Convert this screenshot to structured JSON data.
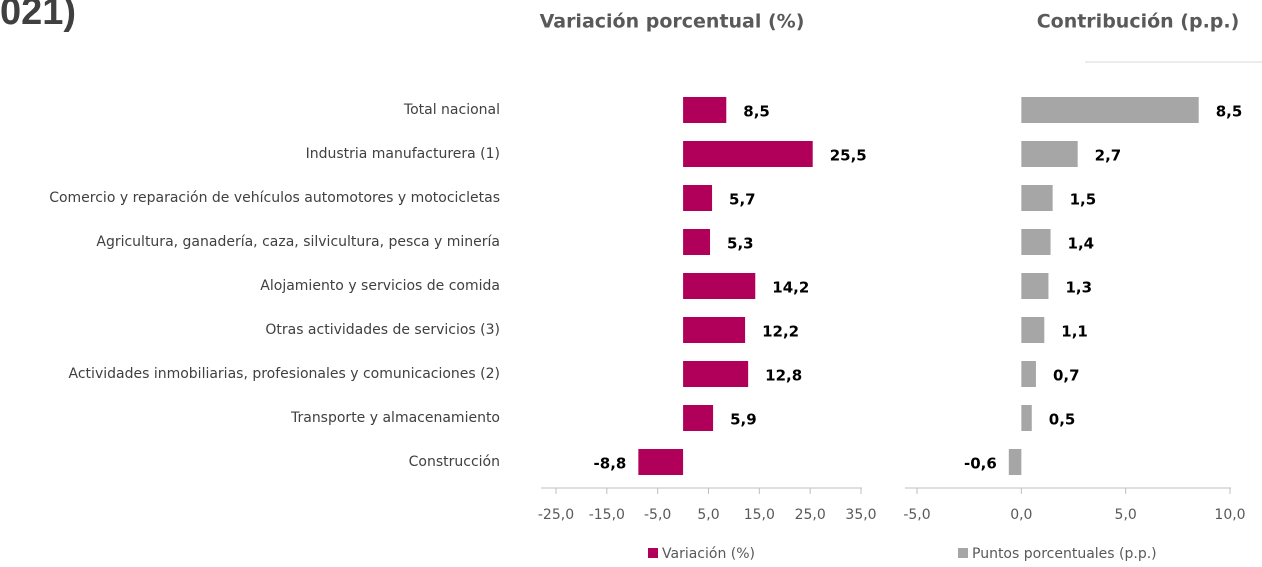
{
  "title_fragment": "021)",
  "chart_data": [
    {
      "type": "barh",
      "title": "Variación porcentual (%)",
      "categories": [
        "Total nacional",
        "Industria manufacturera  (1)",
        "Comercio y reparación de vehículos automotores y motocicletas",
        "Agricultura, ganadería, caza, silvicultura, pesca y minería",
        "Alojamiento y servicios de comida",
        "Otras actividades de servicios (3)",
        "Actividades inmobiliarias, profesionales y comunicaciones (2)",
        "Transporte y almacenamiento",
        "Construcción"
      ],
      "series": [
        {
          "name": "Variación (%)",
          "color": "#b0005a",
          "values": [
            8.5,
            25.5,
            5.7,
            5.3,
            14.2,
            12.2,
            12.8,
            5.9,
            -8.8
          ],
          "value_labels": [
            "8,5",
            "25,5",
            "5,7",
            "5,3",
            "14,2",
            "12,2",
            "12,8",
            "5,9",
            "-8,8"
          ]
        }
      ],
      "xlim": [
        -25,
        35
      ],
      "xticks": [
        {
          "value": -25,
          "label": "-25,0"
        },
        {
          "value": -15,
          "label": "-15,0"
        },
        {
          "value": -5,
          "label": "-5,0"
        },
        {
          "value": 5,
          "label": "5,0"
        },
        {
          "value": 15,
          "label": "15,0"
        },
        {
          "value": 25,
          "label": "25,0"
        },
        {
          "value": 35,
          "label": "35,0"
        }
      ]
    },
    {
      "type": "barh",
      "title": "Contribución (p.p.)",
      "series": [
        {
          "name": "Puntos porcentuales (p.p.)",
          "color": "#a6a6a6",
          "values": [
            8.5,
            2.7,
            1.5,
            1.4,
            1.3,
            1.1,
            0.7,
            0.5,
            -0.6
          ],
          "value_labels": [
            "8,5",
            "2,7",
            "1,5",
            "1,4",
            "1,3",
            "1,1",
            "0,7",
            "0,5",
            "-0,6"
          ]
        }
      ],
      "xlim": [
        -5,
        10
      ],
      "xticks": [
        {
          "value": -5,
          "label": "-5,0"
        },
        {
          "value": 0,
          "label": "0,0"
        },
        {
          "value": 5,
          "label": "5,0"
        },
        {
          "value": 10,
          "label": "10,0"
        }
      ]
    }
  ]
}
